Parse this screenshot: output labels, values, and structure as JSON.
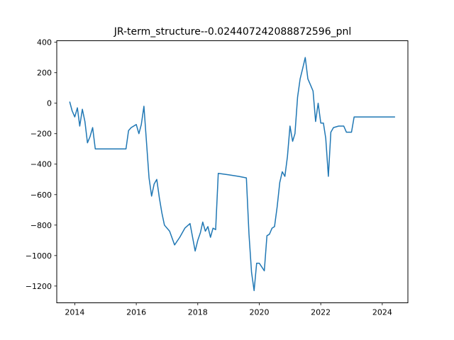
{
  "chart_data": {
    "type": "line",
    "title": "JR-term_structure--0.024407242088872596_pnl",
    "xlabel": "",
    "ylabel": "",
    "x_ticks": [
      "2014",
      "2016",
      "2018",
      "2020",
      "2022",
      "2024"
    ],
    "y_ticks": [
      "−1200",
      "−1000",
      "−800",
      "−600",
      "−400",
      "−200",
      "0",
      "200",
      "400"
    ],
    "xlim": [
      "2013-06-01",
      "2024-11-01"
    ],
    "ylim": [
      -1310,
      410
    ],
    "grid": false,
    "legend": "none",
    "colors": {
      "line": "#1f77b4"
    },
    "series": [
      {
        "x": [
          "2013-11-01",
          "2013-12-01",
          "2014-01-01",
          "2014-02-01",
          "2014-03-01",
          "2014-04-01",
          "2014-05-01",
          "2014-06-01",
          "2014-07-01",
          "2014-08-01",
          "2014-09-01",
          "2015-03-01",
          "2015-09-01",
          "2015-10-01",
          "2015-11-01",
          "2016-01-01",
          "2016-02-01",
          "2016-03-01",
          "2016-04-01",
          "2016-06-01",
          "2016-07-01",
          "2016-08-01",
          "2016-09-01",
          "2016-10-01",
          "2016-11-01",
          "2016-12-01",
          "2017-02-01",
          "2017-04-01",
          "2017-06-01",
          "2017-08-01",
          "2017-10-01",
          "2017-12-01",
          "2018-01-01",
          "2018-02-01",
          "2018-03-01",
          "2018-04-01",
          "2018-05-01",
          "2018-06-01",
          "2018-07-01",
          "2018-08-01",
          "2018-09-01",
          "2019-01-01",
          "2019-05-01",
          "2019-08-01",
          "2019-09-01",
          "2019-10-01",
          "2019-11-01",
          "2019-12-01",
          "2020-01-01",
          "2020-03-01",
          "2020-04-01",
          "2020-05-01",
          "2020-06-01",
          "2020-07-01",
          "2020-08-01",
          "2020-09-01",
          "2020-10-01",
          "2020-11-01",
          "2020-12-01",
          "2021-01-01",
          "2021-02-01",
          "2021-03-01",
          "2021-04-01",
          "2021-05-01",
          "2021-06-01",
          "2021-07-01",
          "2021-08-01",
          "2021-09-01",
          "2021-10-01",
          "2021-11-01",
          "2021-12-01",
          "2022-01-01",
          "2022-02-01",
          "2022-03-01",
          "2022-04-01",
          "2022-05-01",
          "2022-06-01",
          "2022-08-01",
          "2022-10-01",
          "2022-11-01",
          "2023-01-01",
          "2023-02-01",
          "2023-06-01",
          "2024-01-01",
          "2024-06-01"
        ],
        "values": [
          10,
          -50,
          -90,
          -30,
          -150,
          -40,
          -120,
          -260,
          -220,
          -160,
          -300,
          -300,
          -300,
          -180,
          -160,
          -140,
          -200,
          -140,
          -20,
          -490,
          -610,
          -530,
          -500,
          -620,
          -720,
          -800,
          -840,
          -930,
          -880,
          -820,
          -790,
          -970,
          -900,
          -850,
          -780,
          -840,
          -810,
          -880,
          -820,
          -830,
          -460,
          -470,
          -480,
          -490,
          -860,
          -1110,
          -1230,
          -1050,
          -1050,
          -1100,
          -870,
          -860,
          -820,
          -810,
          -680,
          -520,
          -450,
          -480,
          -350,
          -150,
          -250,
          -200,
          40,
          160,
          230,
          300,
          160,
          120,
          80,
          -120,
          0,
          -130,
          -130,
          -230,
          -480,
          -190,
          -160,
          -150,
          -150,
          -190,
          -190,
          -90,
          -90,
          -90,
          -90
        ]
      }
    ]
  }
}
